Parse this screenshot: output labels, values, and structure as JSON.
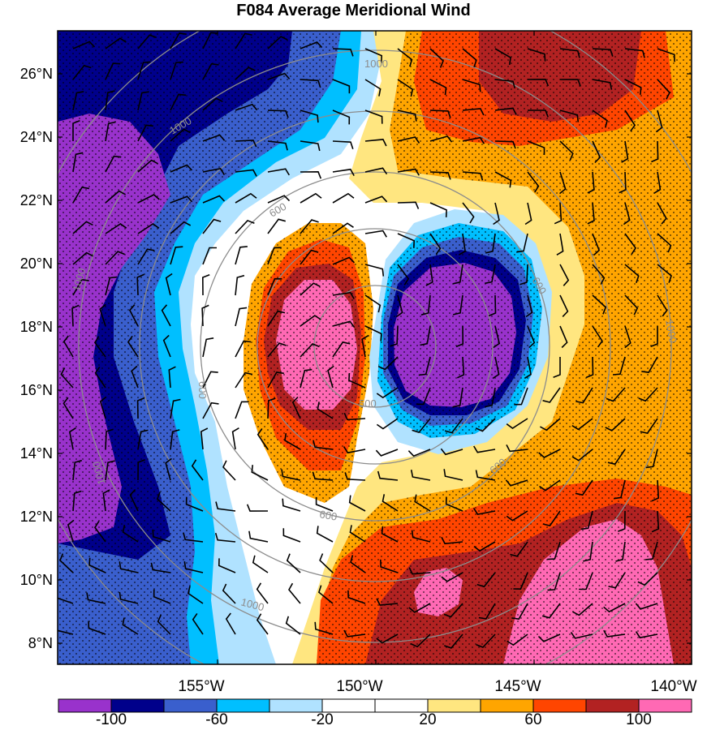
{
  "title": "F084 Average Meridional Wind",
  "latitude_labels": [
    "26°N",
    "24°N",
    "22°N",
    "20°N",
    "18°N",
    "16°N",
    "14°N",
    "12°N",
    "10°N",
    "8°N"
  ],
  "longitude_labels": [
    "155°W",
    "150°W",
    "145°W",
    "140°W"
  ],
  "colorbar": {
    "labels": [
      "-100",
      "-60",
      "-20",
      "20",
      "60",
      "100"
    ],
    "colors": [
      "#9932cc",
      "#00008b",
      "#3a5fcd",
      "#00bfff",
      "#b0e2ff",
      "#ffffff",
      "#ffffff",
      "#ffe680",
      "#ffa500",
      "#ff4500",
      "#b22222",
      "#ff69b4"
    ]
  },
  "contour_labels": [
    "1000",
    "1000",
    "1000",
    "1000",
    "1000",
    "1000",
    "600",
    "600",
    "600",
    "600",
    "600",
    "500"
  ],
  "colors": {
    "strong_north": "#ff69b4",
    "strong_south": "#9932cc",
    "contour_line": "#8c8c8c"
  }
}
